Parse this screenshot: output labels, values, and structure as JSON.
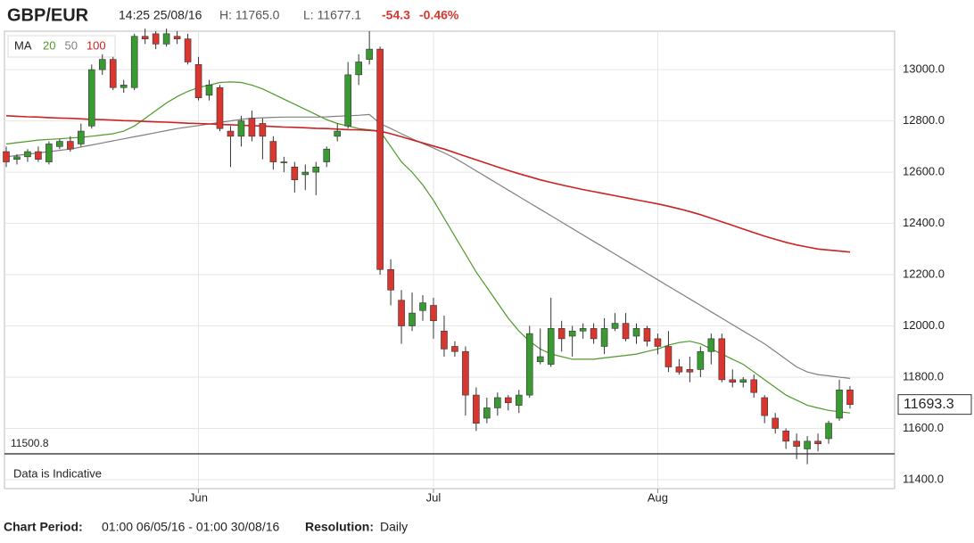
{
  "chart_data": {
    "type": "candlestick",
    "title": "GBP/EUR",
    "time": "14:25 25/08/16",
    "high_label": "H: 11765.0",
    "low_label": "L: 11677.1",
    "change": "-54.3",
    "change_percent": "-0.46%",
    "legend_title": "MA",
    "note": "Data is Indicative",
    "period_label": "Chart Period:",
    "period": "01:00 06/05/16 - 01:00 30/08/16",
    "resolution_label": "Resolution:",
    "resolution": "Daily",
    "up_color": "#3a9a32",
    "down_color": "#d8362e",
    "grid": true,
    "ylim": [
      11365,
      13150
    ],
    "yticks": [
      {
        "value": 11400,
        "label": "11400.0"
      },
      {
        "value": 11600,
        "label": "11600.0"
      },
      {
        "value": 11800,
        "label": "11800.0"
      },
      {
        "value": 12000,
        "label": "12000.0"
      },
      {
        "value": 12200,
        "label": "12200.0"
      },
      {
        "value": 12400,
        "label": "12400.0"
      },
      {
        "value": 12600,
        "label": "12600.0"
      },
      {
        "value": 12800,
        "label": "12800.0"
      },
      {
        "value": 13000,
        "label": "13000.0"
      }
    ],
    "reference_line": {
      "value": 11500.8,
      "label": "11500.8"
    },
    "last_price": {
      "value": 11693.3,
      "label": "11693.3"
    },
    "categories": [
      null,
      null,
      null,
      null,
      null,
      null,
      null,
      null,
      null,
      null,
      null,
      null,
      null,
      null,
      null,
      null,
      null,
      null,
      "Jun",
      null,
      null,
      null,
      null,
      null,
      null,
      null,
      null,
      null,
      null,
      null,
      null,
      null,
      null,
      null,
      null,
      null,
      null,
      null,
      null,
      null,
      "Jul",
      null,
      null,
      null,
      null,
      null,
      null,
      null,
      null,
      null,
      null,
      null,
      null,
      null,
      null,
      null,
      null,
      null,
      null,
      null,
      null,
      "Aug",
      null,
      null,
      null,
      null,
      null,
      null,
      null,
      null,
      null,
      null,
      null,
      null,
      null,
      null,
      null,
      null,
      null,
      null
    ],
    "open": [
      12680,
      12650,
      12660,
      12680,
      12640,
      12700,
      12720,
      12710,
      12780,
      13000,
      13040,
      12930,
      12930,
      13130,
      13140,
      13100,
      13130,
      13120,
      13020,
      12900,
      12930,
      12760,
      12740,
      12810,
      12790,
      12720,
      12640,
      12620,
      12590,
      12600,
      12640,
      12740,
      12780,
      12980,
      13040,
      13080,
      12220,
      12100,
      12000,
      12060,
      12080,
      11980,
      11920,
      11900,
      11730,
      11640,
      11680,
      11720,
      11690,
      11730,
      11860,
      11850,
      11990,
      11960,
      11980,
      11990,
      11920,
      11990,
      12010,
      11960,
      11990,
      11950,
      11920,
      11840,
      11830,
      11830,
      11900,
      11950,
      11790,
      11780,
      11790,
      11720,
      11640,
      11590,
      11550,
      11520,
      11550,
      11560,
      11640,
      11750
    ],
    "high": [
      12700,
      12670,
      12690,
      12700,
      12720,
      12730,
      12740,
      12790,
      13020,
      13060,
      13050,
      12960,
      13140,
      13160,
      13150,
      13160,
      13150,
      13140,
      13050,
      12960,
      12940,
      12780,
      12820,
      12840,
      12810,
      12740,
      12660,
      12640,
      12630,
      12640,
      12700,
      12790,
      13030,
      13060,
      13150,
      13090,
      12260,
      12140,
      12130,
      12120,
      12110,
      12040,
      11940,
      11920,
      11760,
      11720,
      11740,
      11730,
      11750,
      12000,
      11990,
      12110,
      12020,
      12000,
      12010,
      12010,
      12030,
      12050,
      12050,
      12010,
      12000,
      11970,
      11980,
      11870,
      11880,
      11920,
      11970,
      11970,
      11830,
      11800,
      11810,
      11730,
      11660,
      11600,
      11580,
      11570,
      11580,
      11630,
      11790,
      11765
    ],
    "low": [
      12620,
      12630,
      12640,
      12640,
      12630,
      12690,
      12680,
      12700,
      12770,
      12980,
      12920,
      12910,
      12920,
      13100,
      13080,
      13090,
      13100,
      13020,
      12880,
      12880,
      12760,
      12620,
      12700,
      12720,
      12650,
      12610,
      12600,
      12520,
      12530,
      12510,
      12620,
      12720,
      12770,
      12940,
      13020,
      12200,
      12080,
      11930,
      11980,
      12020,
      11950,
      11880,
      11880,
      11650,
      11590,
      11620,
      11650,
      11670,
      11660,
      11720,
      11850,
      11840,
      11900,
      11880,
      11950,
      11930,
      11890,
      11980,
      11940,
      11930,
      11920,
      11890,
      11820,
      11810,
      11780,
      11800,
      11850,
      11780,
      11760,
      11760,
      11720,
      11620,
      11580,
      11520,
      11480,
      11460,
      11510,
      11540,
      11630,
      11677.1
    ],
    "close": [
      12640,
      12660,
      12680,
      12650,
      12710,
      12720,
      12690,
      12760,
      13000,
      13040,
      12930,
      12940,
      13130,
      13120,
      13100,
      13140,
      13120,
      13030,
      12890,
      12940,
      12770,
      12740,
      12800,
      12740,
      12740,
      12640,
      12640,
      12570,
      12600,
      12620,
      12690,
      12760,
      12980,
      13030,
      13080,
      12220,
      12140,
      12000,
      12050,
      12090,
      12020,
      11910,
      11900,
      11730,
      11620,
      11680,
      11720,
      11700,
      11730,
      11970,
      11880,
      11990,
      11950,
      11980,
      11990,
      11950,
      11990,
      12010,
      11950,
      11990,
      11940,
      11920,
      11840,
      11820,
      11820,
      11900,
      11950,
      11790,
      11780,
      11790,
      11740,
      11650,
      11600,
      11550,
      11530,
      11550,
      11540,
      11620,
      11750,
      11693.3
    ],
    "series": [
      {
        "name": "20",
        "color": "#4c9a2a",
        "values": [
          12710,
          12715,
          12720,
          12725,
          12728,
          12730,
          12733,
          12736,
          12740,
          12745,
          12750,
          12760,
          12780,
          12810,
          12840,
          12870,
          12895,
          12915,
          12930,
          12940,
          12950,
          12952,
          12950,
          12940,
          12925,
          12905,
          12885,
          12865,
          12845,
          12825,
          12805,
          12790,
          12780,
          12770,
          12765,
          12760,
          12700,
          12640,
          12600,
          12550,
          12490,
          12420,
          12350,
          12280,
          12210,
          12150,
          12090,
          12030,
          11980,
          11940,
          11910,
          11890,
          11880,
          11870,
          11870,
          11870,
          11875,
          11880,
          11885,
          11890,
          11900,
          11910,
          11925,
          11935,
          11940,
          11930,
          11910,
          11890,
          11870,
          11850,
          11820,
          11790,
          11760,
          11730,
          11710,
          11690,
          11680,
          11670,
          11665,
          11660
        ]
      },
      {
        "name": "50",
        "color": "#808080",
        "values": [
          12660,
          12665,
          12670,
          12675,
          12680,
          12685,
          12690,
          12698,
          12706,
          12714,
          12722,
          12730,
          12738,
          12746,
          12754,
          12762,
          12770,
          12776,
          12782,
          12788,
          12794,
          12800,
          12806,
          12810,
          12812,
          12814,
          12815,
          12815,
          12815,
          12815,
          12816,
          12818,
          12820,
          12822,
          12825,
          12790,
          12770,
          12750,
          12730,
          12712,
          12694,
          12675,
          12655,
          12630,
          12605,
          12580,
          12555,
          12530,
          12505,
          12480,
          12455,
          12430,
          12405,
          12380,
          12355,
          12330,
          12305,
          12280,
          12255,
          12230,
          12205,
          12180,
          12155,
          12130,
          12105,
          12080,
          12055,
          12030,
          12005,
          11980,
          11955,
          11930,
          11900,
          11870,
          11840,
          11820,
          11810,
          11805,
          11800,
          11795
        ]
      },
      {
        "name": "100",
        "color": "#cc2222",
        "values": [
          12820,
          12818,
          12816,
          12815,
          12813,
          12811,
          12810,
          12808,
          12806,
          12805,
          12803,
          12801,
          12800,
          12798,
          12796,
          12795,
          12793,
          12791,
          12790,
          12788,
          12786,
          12785,
          12783,
          12781,
          12780,
          12778,
          12776,
          12775,
          12773,
          12771,
          12770,
          12768,
          12766,
          12765,
          12763,
          12760,
          12750,
          12738,
          12726,
          12714,
          12702,
          12690,
          12676,
          12662,
          12648,
          12634,
          12620,
          12607,
          12594,
          12582,
          12570,
          12560,
          12550,
          12541,
          12532,
          12524,
          12516,
          12508,
          12500,
          12492,
          12484,
          12476,
          12467,
          12457,
          12446,
          12434,
          12420,
          12406,
          12392,
          12378,
          12364,
          12350,
          12338,
          12326,
          12316,
          12308,
          12300,
          12296,
          12292,
          12288
        ]
      }
    ]
  }
}
